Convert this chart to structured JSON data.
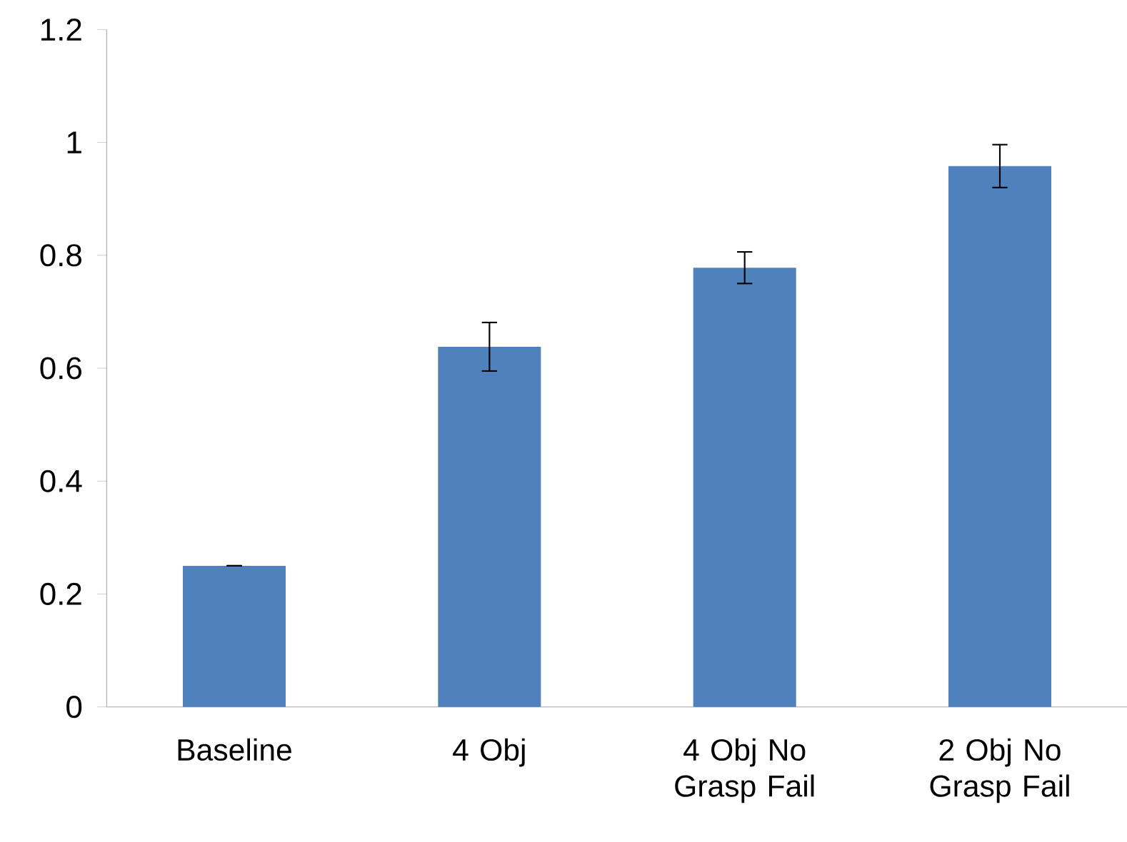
{
  "chart_data": {
    "type": "bar",
    "categories": [
      "Baseline",
      "4 Obj",
      "4 Obj No Grasp Fail",
      "2 Obj No Grasp Fail"
    ],
    "values": [
      0.25,
      0.638,
      0.778,
      0.958
    ],
    "errors": [
      0,
      0.043,
      0.028,
      0.038
    ],
    "color": "#4f81bd",
    "ylim": [
      0,
      1.2
    ],
    "yticks": [
      0,
      0.2,
      0.4,
      0.6,
      0.8,
      1,
      1.2
    ],
    "grid": false
  }
}
